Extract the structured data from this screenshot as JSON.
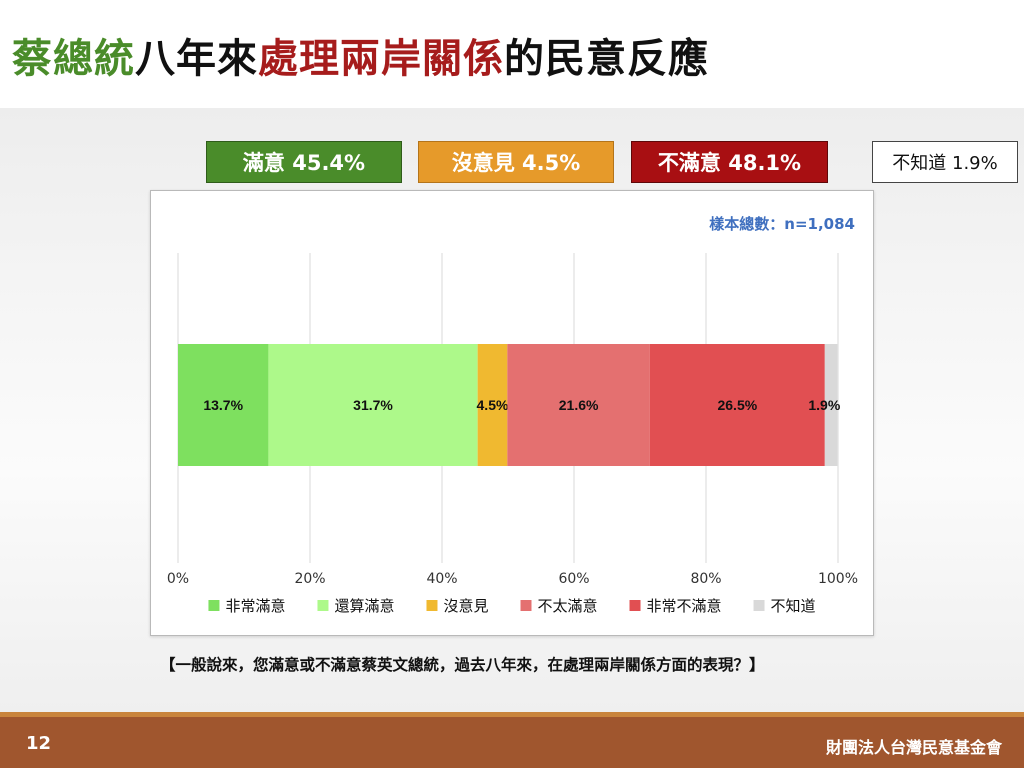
{
  "title": {
    "parts": [
      {
        "text": "蔡總統",
        "color": "#4a8c2a"
      },
      {
        "text": "八年來",
        "color": "#111111"
      },
      {
        "text": "處理兩岸關係",
        "color": "#a61c1c"
      },
      {
        "text": "的民意反應",
        "color": "#111111"
      }
    ]
  },
  "summary": [
    {
      "label": "滿意 45.4%",
      "bg": "#4a8c2a"
    },
    {
      "label": "沒意見 4.5%",
      "bg": "#e69a2a"
    },
    {
      "label": "不滿意 48.1%",
      "bg": "#a80f12"
    },
    {
      "label": "不知道 1.9%",
      "bg": "#ffffff"
    }
  ],
  "sample_size": "樣本總數：n=1,084",
  "chart_data": {
    "type": "bar",
    "orientation": "horizontal",
    "stacked": true,
    "categories": [
      ""
    ],
    "series": [
      {
        "name": "非常滿意",
        "values": [
          13.7
        ],
        "label": "13.7%",
        "color": "#7ee05f"
      },
      {
        "name": "還算滿意",
        "values": [
          31.7
        ],
        "label": "31.7%",
        "color": "#adf98a"
      },
      {
        "name": "沒意見",
        "values": [
          4.5
        ],
        "label": "4.5%",
        "color": "#f0b930"
      },
      {
        "name": "不太滿意",
        "values": [
          21.6
        ],
        "label": "21.6%",
        "color": "#e47070"
      },
      {
        "name": "非常不滿意",
        "values": [
          26.5
        ],
        "label": "26.5%",
        "color": "#e14f52"
      },
      {
        "name": "不知道",
        "values": [
          1.9
        ],
        "label": "1.9%",
        "color": "#d9d9d9"
      }
    ],
    "x_ticks": [
      "0%",
      "20%",
      "40%",
      "60%",
      "80%",
      "100%"
    ],
    "xlim": [
      0,
      100
    ],
    "grid": true,
    "legend": "bottom"
  },
  "question": "【一般說來，您滿意或不滿意蔡英文總統，過去八年來，在處理兩岸關係方面的表現？】",
  "footer": {
    "page": "12",
    "organization": "財團法人台灣民意基金會"
  }
}
